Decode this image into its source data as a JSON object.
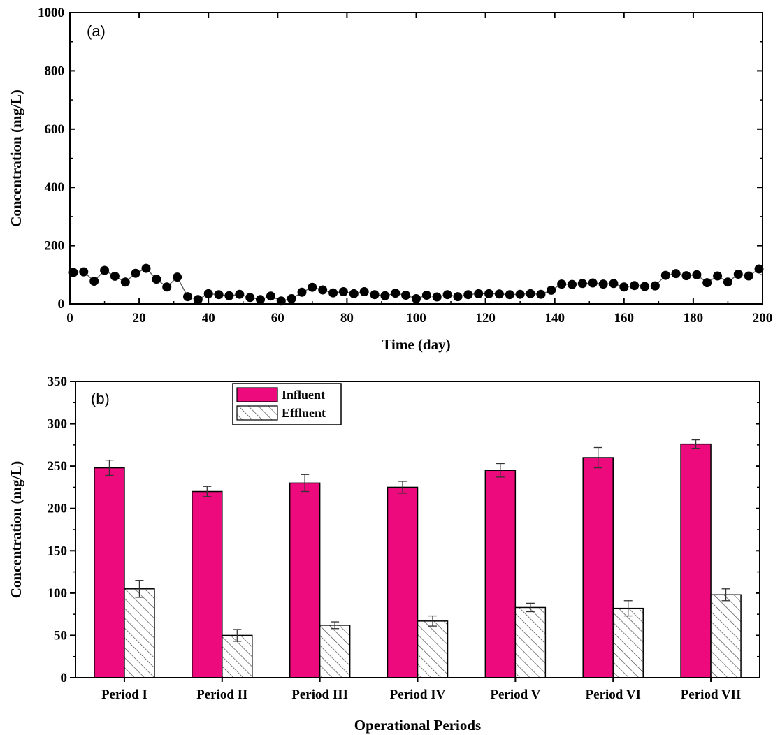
{
  "chart_data": [
    {
      "type": "scatter",
      "panel_label": "(a)",
      "xlabel": "Time (day)",
      "ylabel": "Concentration (mg/L)",
      "xlim": [
        0,
        200
      ],
      "ylim": [
        0,
        1000
      ],
      "xticks": [
        "0",
        "20",
        "40",
        "60",
        "80",
        "100",
        "120",
        "140",
        "160",
        "180",
        "200"
      ],
      "yticks": [
        "0",
        "200",
        "400",
        "600",
        "800",
        "1000"
      ],
      "connected": true,
      "marker_color": "#000000",
      "x": [
        1,
        4,
        7,
        10,
        13,
        16,
        19,
        22,
        25,
        28,
        31,
        34,
        37,
        40,
        43,
        46,
        49,
        52,
        55,
        58,
        61,
        64,
        67,
        70,
        73,
        76,
        79,
        82,
        85,
        88,
        91,
        94,
        97,
        100,
        103,
        106,
        109,
        112,
        115,
        118,
        121,
        124,
        127,
        130,
        133,
        136,
        139,
        142,
        145,
        148,
        151,
        154,
        157,
        160,
        163,
        166,
        169,
        172,
        175,
        178,
        181,
        184,
        187,
        190,
        193,
        196,
        199
      ],
      "y": [
        108,
        110,
        78,
        115,
        95,
        75,
        105,
        122,
        85,
        58,
        92,
        25,
        15,
        35,
        32,
        28,
        33,
        22,
        15,
        27,
        10,
        18,
        40,
        57,
        48,
        38,
        42,
        35,
        42,
        32,
        28,
        37,
        30,
        18,
        30,
        24,
        32,
        25,
        32,
        35,
        35,
        34,
        32,
        33,
        35,
        33,
        47,
        68,
        67,
        70,
        72,
        68,
        70,
        58,
        63,
        60,
        62,
        98,
        104,
        97,
        100,
        73,
        96,
        75,
        102,
        96,
        120
      ]
    },
    {
      "type": "bar",
      "panel_label": "(b)",
      "xlabel": "Operational Periods",
      "ylabel": "Concentration (mg/L)",
      "ylim": [
        0,
        350
      ],
      "yticks": [
        "0",
        "50",
        "100",
        "150",
        "200",
        "250",
        "300",
        "350"
      ],
      "categories": [
        "Period I",
        "Period II",
        "Period III",
        "Period IV",
        "Period V",
        "Period VI",
        "Period VII"
      ],
      "series": [
        {
          "name": "Influent",
          "color": "#ec0a7c",
          "pattern": "solid",
          "values": [
            248,
            220,
            230,
            225,
            245,
            260,
            276
          ],
          "errors": [
            9,
            6,
            10,
            7,
            8,
            12,
            5
          ]
        },
        {
          "name": "Effluent",
          "color": "#ffffff",
          "pattern": "hatch",
          "values": [
            105,
            50,
            62,
            67,
            83,
            82,
            98
          ],
          "errors": [
            10,
            7,
            4,
            6,
            5,
            9,
            7
          ]
        }
      ],
      "legend_position": "top-left"
    }
  ]
}
